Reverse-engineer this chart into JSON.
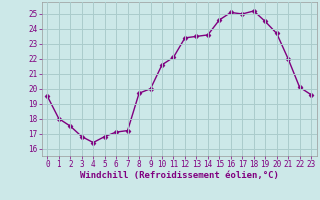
{
  "x": [
    0,
    1,
    2,
    3,
    4,
    5,
    6,
    7,
    8,
    9,
    10,
    11,
    12,
    13,
    14,
    15,
    16,
    17,
    18,
    19,
    20,
    21,
    22,
    23
  ],
  "y": [
    19.5,
    18.0,
    17.5,
    16.8,
    16.4,
    16.8,
    17.1,
    17.2,
    19.7,
    20.0,
    21.6,
    22.1,
    23.4,
    23.5,
    23.6,
    24.6,
    25.1,
    25.0,
    25.2,
    24.5,
    23.7,
    22.0,
    20.1,
    19.6
  ],
  "line_color": "#800080",
  "marker": "D",
  "marker_size": 2.5,
  "bg_color": "#cce8e8",
  "grid_color": "#aacccc",
  "xlabel": "Windchill (Refroidissement éolien,°C)",
  "ylim": [
    15.5,
    25.8
  ],
  "xlim": [
    -0.5,
    23.5
  ],
  "yticks": [
    16,
    17,
    18,
    19,
    20,
    21,
    22,
    23,
    24,
    25
  ],
  "xticks": [
    0,
    1,
    2,
    3,
    4,
    5,
    6,
    7,
    8,
    9,
    10,
    11,
    12,
    13,
    14,
    15,
    16,
    17,
    18,
    19,
    20,
    21,
    22,
    23
  ],
  "xlabel_color": "#800080",
  "tick_color": "#800080",
  "line_width": 1.0,
  "figsize": [
    3.2,
    2.0
  ],
  "dpi": 100
}
